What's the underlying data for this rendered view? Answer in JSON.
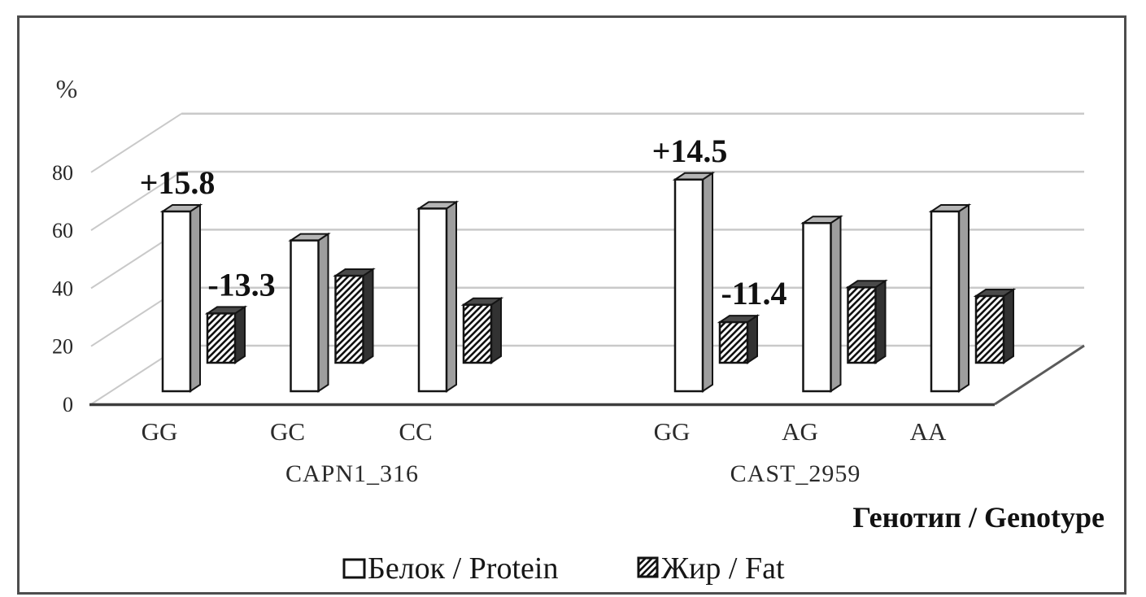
{
  "chart_data": {
    "type": "bar",
    "projection": "3d-column",
    "ylabel": "%",
    "xlabel": "Генотип / Genotype",
    "ylim": [
      0,
      80
    ],
    "yticks": [
      0,
      20,
      40,
      60,
      80
    ],
    "grid": true,
    "legend_position": "bottom",
    "groups": [
      {
        "label": "CAPN1_316",
        "categories": [
          "GG",
          "GC",
          "CC"
        ]
      },
      {
        "label": "CAST_2959",
        "categories": [
          "GG",
          "AG",
          "AA"
        ]
      }
    ],
    "series": [
      {
        "name": "Белок / Protein",
        "fill": "white",
        "values": [
          [
            62,
            52,
            63
          ],
          [
            73,
            58,
            62
          ]
        ]
      },
      {
        "name": "Жир / Fat",
        "fill": "diagonal-hatch",
        "values": [
          [
            17,
            30,
            20
          ],
          [
            14,
            26,
            23
          ]
        ]
      }
    ],
    "annotations": [
      {
        "text": "+15.8",
        "group": 0,
        "category": 0,
        "series": 0
      },
      {
        "text": "-13.3",
        "group": 0,
        "category": 0,
        "series": 1
      },
      {
        "text": "+14.5",
        "group": 1,
        "category": 0,
        "series": 0
      },
      {
        "text": "-11.4",
        "group": 1,
        "category": 0,
        "series": 1
      }
    ]
  },
  "colors": {
    "background": "#ffffff",
    "frame": "#4d4d4d",
    "gridline": "#c9c9c9",
    "axis_line": "#3d3d3d",
    "floor_edge": "#5a5a5a",
    "bar_outline": "#141414",
    "protein_front": "#ffffff",
    "protein_top": "#b5b5b5",
    "protein_side": "#9e9e9e",
    "fat_top": "#4a4a4a",
    "fat_side": "#323232",
    "hatch_line": "#111111"
  }
}
